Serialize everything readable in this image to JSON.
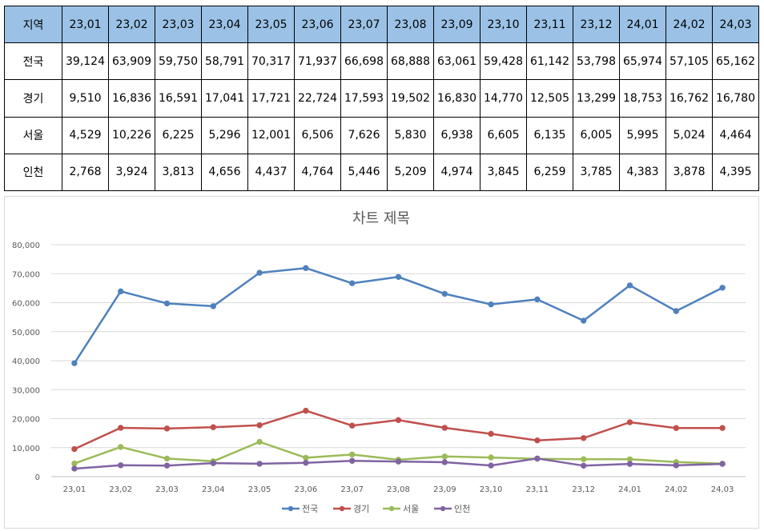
{
  "table": {
    "header_label": "지역",
    "columns": [
      "23,01",
      "23,02",
      "23,03",
      "23,04",
      "23,05",
      "23,06",
      "23,07",
      "23,08",
      "23,09",
      "23,10",
      "23,11",
      "23,12",
      "24,01",
      "24,02",
      "24,03"
    ],
    "rows": [
      {
        "region": "전국",
        "cells": [
          "39,124",
          "63,909",
          "59,750",
          "58,791",
          "70,317",
          "71,937",
          "66,698",
          "68,888",
          "63,061",
          "59,428",
          "61,142",
          "53,798",
          "65,974",
          "57,105",
          "65,162"
        ]
      },
      {
        "region": "경기",
        "cells": [
          "9,510",
          "16,836",
          "16,591",
          "17,041",
          "17,721",
          "22,724",
          "17,593",
          "19,502",
          "16,830",
          "14,770",
          "12,505",
          "13,299",
          "18,753",
          "16,762",
          "16,780"
        ]
      },
      {
        "region": "서울",
        "cells": [
          "4,529",
          "10,226",
          "6,225",
          "5,296",
          "12,001",
          "6,506",
          "7,626",
          "5,830",
          "6,938",
          "6,605",
          "6,135",
          "6,005",
          "5,995",
          "5,024",
          "4,464"
        ]
      },
      {
        "region": "인천",
        "cells": [
          "2,768",
          "3,924",
          "3,813",
          "4,656",
          "4,437",
          "4,764",
          "5,446",
          "5,209",
          "4,974",
          "3,845",
          "6,259",
          "3,785",
          "4,383",
          "3,878",
          "4,395"
        ]
      }
    ]
  },
  "chart_data": {
    "type": "line",
    "title": "차트 제목",
    "categories": [
      "23,01",
      "23,02",
      "23,03",
      "23,04",
      "23,05",
      "23,06",
      "23,07",
      "23,08",
      "23,09",
      "23,10",
      "23,11",
      "23,12",
      "24,01",
      "24,02",
      "24,03"
    ],
    "ylim": [
      0,
      80000
    ],
    "yticks": [
      0,
      10000,
      20000,
      30000,
      40000,
      50000,
      60000,
      70000,
      80000
    ],
    "ytick_labels": [
      "0",
      "10,000",
      "20,000",
      "30,000",
      "40,000",
      "50,000",
      "60,000",
      "70,000",
      "80,000"
    ],
    "grid": true,
    "legend_position": "bottom",
    "series": [
      {
        "name": "전국",
        "color": "#4f81bd",
        "values": [
          39124,
          63909,
          59750,
          58791,
          70317,
          71937,
          66698,
          68888,
          63061,
          59428,
          61142,
          53798,
          65974,
          57105,
          65162
        ]
      },
      {
        "name": "경기",
        "color": "#c0504d",
        "values": [
          9510,
          16836,
          16591,
          17041,
          17721,
          22724,
          17593,
          19502,
          16830,
          14770,
          12505,
          13299,
          18753,
          16762,
          16780
        ]
      },
      {
        "name": "서울",
        "color": "#9bbb59",
        "values": [
          4529,
          10226,
          6225,
          5296,
          12001,
          6506,
          7626,
          5830,
          6938,
          6605,
          6135,
          6005,
          5995,
          5024,
          4464
        ]
      },
      {
        "name": "인천",
        "color": "#8064a2",
        "values": [
          2768,
          3924,
          3813,
          4656,
          4437,
          4764,
          5446,
          5209,
          4974,
          3845,
          6259,
          3785,
          4383,
          3878,
          4395
        ]
      }
    ]
  }
}
